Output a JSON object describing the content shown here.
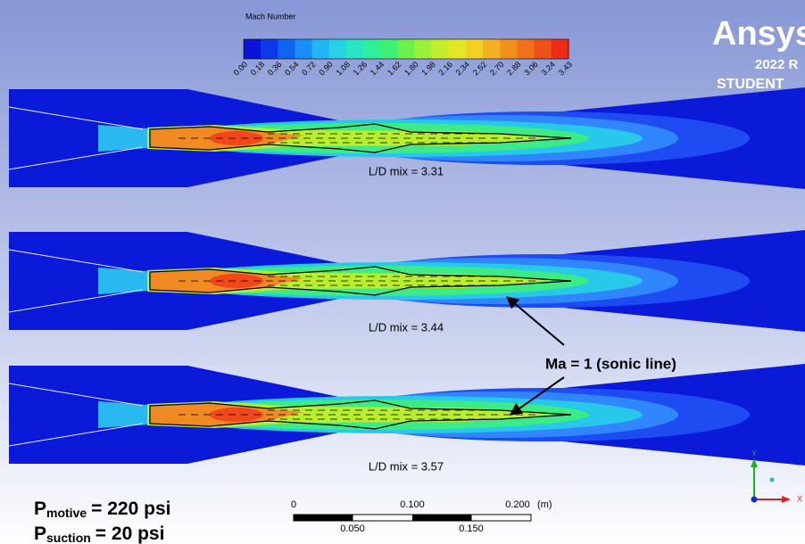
{
  "legend": {
    "title": "Mach Number",
    "labels": [
      "0.00",
      "0.18",
      "0.36",
      "0.54",
      "0.72",
      "0.90",
      "1.08",
      "1.26",
      "1.44",
      "1.62",
      "1.80",
      "1.98",
      "2.16",
      "2.34",
      "2.52",
      "2.70",
      "2.88",
      "3.06",
      "3.24",
      "3.43"
    ]
  },
  "logo": {
    "brand": "Ansys",
    "version": "2022 R",
    "edition": "STUDENT"
  },
  "panels": [
    {
      "label": "L/D mix = 3.31"
    },
    {
      "label": "L/D mix = 3.44"
    },
    {
      "label": "L/D mix = 3.57"
    }
  ],
  "annotation": "Ma = 1 (sonic line)",
  "conditions": [
    {
      "symbol": "P",
      "subscript": "motive",
      "text": "= 220 psi"
    },
    {
      "symbol": "P",
      "subscript": "suction",
      "text": "= 20 psi"
    }
  ],
  "scale_bar": {
    "top_labels": [
      "0",
      "0.100",
      "0.200"
    ],
    "unit": "(m)",
    "bottom_labels": [
      "0.050",
      "0.150"
    ]
  },
  "triad": {
    "y": "Y",
    "x": "X"
  }
}
